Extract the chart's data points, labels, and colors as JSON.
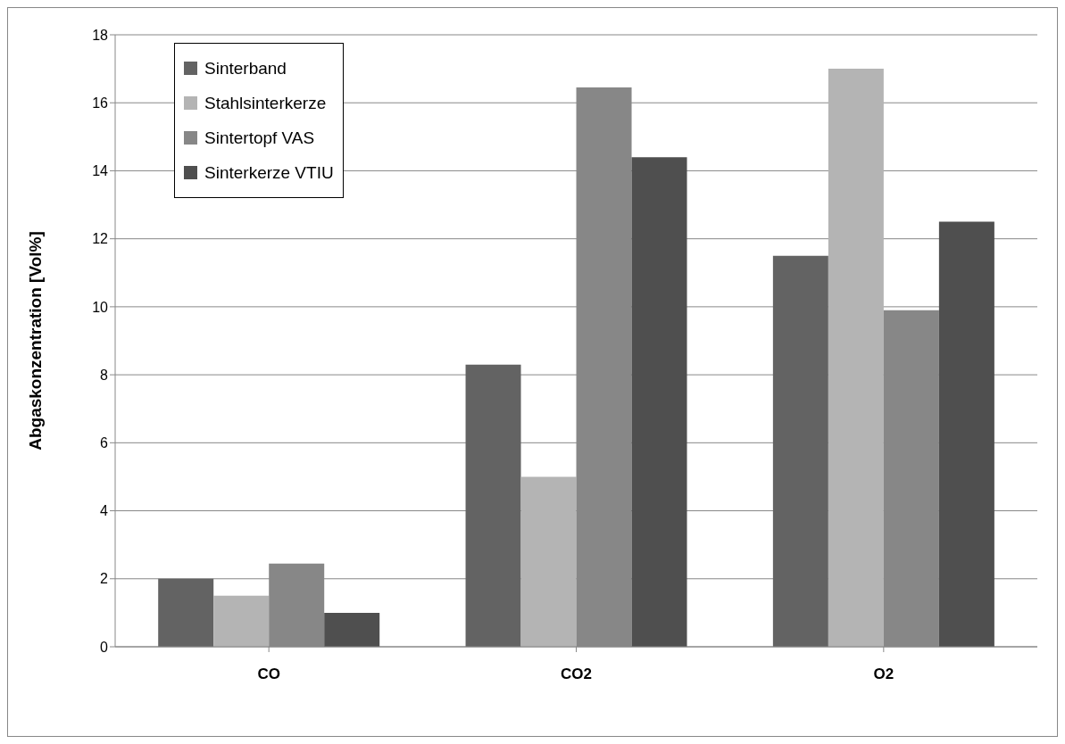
{
  "chart_data": {
    "type": "bar",
    "ylabel": "Abgaskonzentration [Vol%]",
    "categories": [
      "CO",
      "CO2",
      "O2"
    ],
    "series": [
      {
        "name": "Sinterband",
        "color": "#636363",
        "values": [
          2.0,
          8.3,
          11.5
        ]
      },
      {
        "name": "Stahlsinterkerze",
        "color": "#b4b4b4",
        "values": [
          1.5,
          5.0,
          17.0
        ]
      },
      {
        "name": "Sintertopf VAS",
        "color": "#878787",
        "values": [
          2.45,
          16.45,
          9.9
        ]
      },
      {
        "name": "Sinterkerze VTIU",
        "color": "#4f4f4f",
        "values": [
          1.0,
          14.4,
          12.5
        ]
      }
    ],
    "ylim": [
      0,
      18
    ],
    "yticks": [
      0,
      2,
      4,
      6,
      8,
      10,
      12,
      14,
      16,
      18
    ],
    "grid": "y",
    "legend": "top left"
  }
}
